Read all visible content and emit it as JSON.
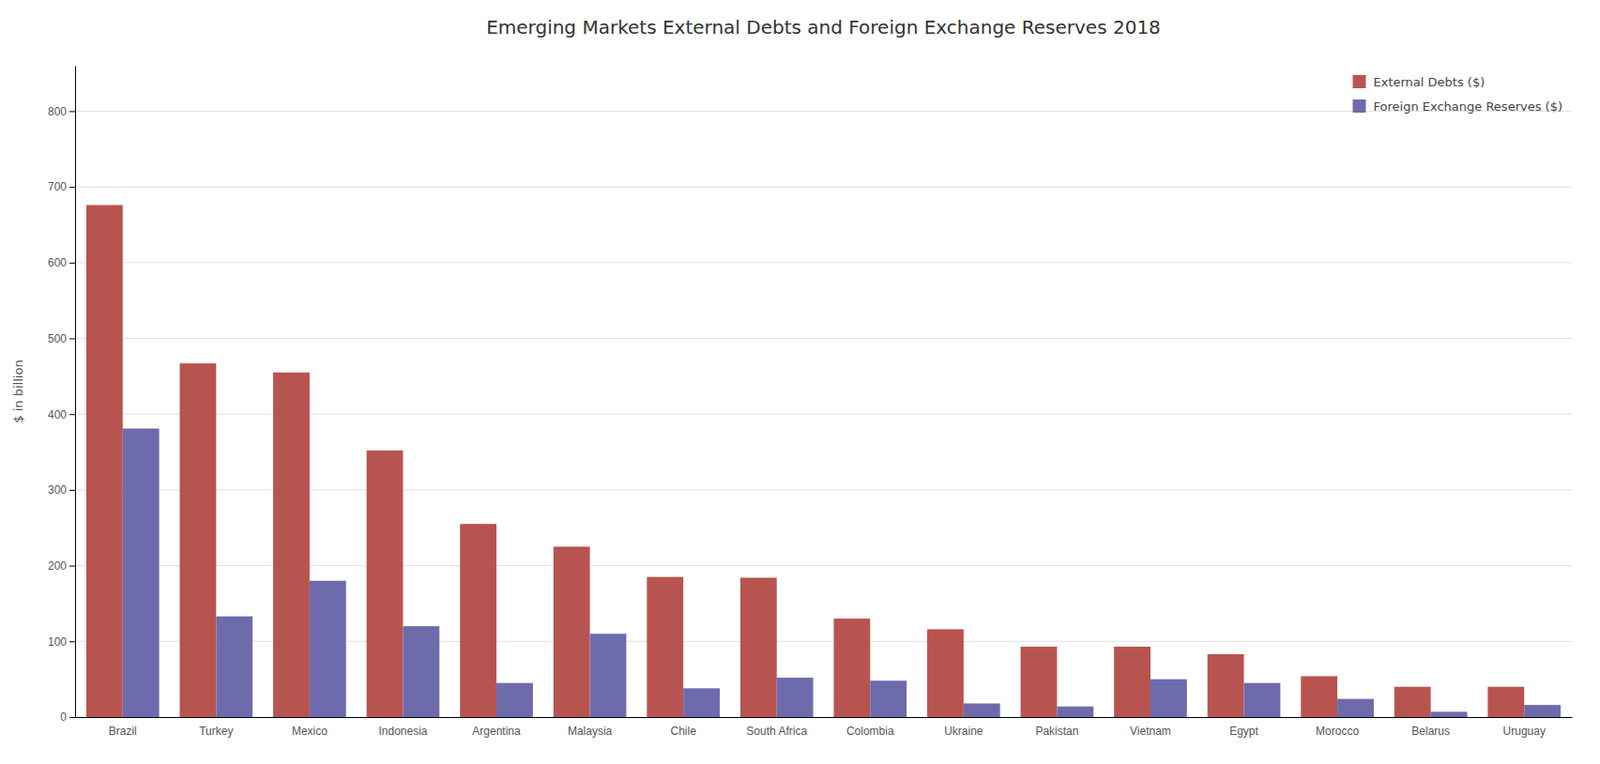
{
  "chart_data": {
    "type": "bar",
    "title": "Emerging Markets External Debts and Foreign Exchange Reserves 2018",
    "categories": [
      "Brazil",
      "Turkey",
      "Mexico",
      "Indonesia",
      "Argentina",
      "Malaysia",
      "Chile",
      "South Africa",
      "Colombia",
      "Ukraine",
      "Pakistan",
      "Vietnam",
      "Egypt",
      "Morocco",
      "Belarus",
      "Uruguay"
    ],
    "series": [
      {
        "name": "External Debts ($)",
        "color": "#B85450",
        "values": [
          676,
          467,
          455,
          352,
          255,
          225,
          185,
          184,
          130,
          116,
          93,
          93,
          83,
          54,
          40,
          40
        ]
      },
      {
        "name": "Foreign Exchange Reserves ($)",
        "color": "#6E6BAD",
        "values": [
          381,
          133,
          180,
          120,
          45,
          110,
          38,
          52,
          48,
          18,
          14,
          50,
          45,
          24,
          7,
          16
        ]
      }
    ],
    "ylabel": "$ in billion",
    "ylim": [
      0,
      860
    ],
    "yticks": [
      0,
      100,
      200,
      300,
      400,
      500,
      600,
      700,
      800
    ],
    "grid": true,
    "legend": "upper right"
  }
}
